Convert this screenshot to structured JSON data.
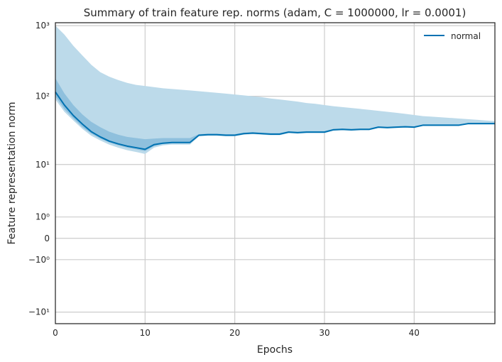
{
  "chart_data": {
    "type": "line",
    "title": "Summary of train feature rep. norms (adam, C = 1000000, lr = 0.0001)",
    "xlabel": "Epochs",
    "ylabel": "Feature representation norm",
    "xlim": [
      0,
      49
    ],
    "yscale": "symlog",
    "ylim": [
      -15,
      1100
    ],
    "grid": true,
    "legend_position": "top-right",
    "x_ticks": [
      0,
      10,
      20,
      30,
      40
    ],
    "y_ticks": [
      {
        "value": -10,
        "label": "−10¹"
      },
      {
        "value": -1,
        "label": "−10⁰"
      },
      {
        "value": 0,
        "label": "0"
      },
      {
        "value": 1,
        "label": "10⁰"
      },
      {
        "value": 10,
        "label": "10¹"
      },
      {
        "value": 100,
        "label": "10²"
      },
      {
        "value": 1000,
        "label": "10³"
      }
    ],
    "colors": {
      "line": "#0072b2",
      "band_outer": "#bcdaea",
      "band_inner": "#8fc0dd"
    },
    "series": [
      {
        "name": "normal",
        "x": [
          0,
          1,
          2,
          3,
          4,
          5,
          6,
          7,
          8,
          9,
          10,
          11,
          12,
          13,
          14,
          15,
          16,
          17,
          18,
          19,
          20,
          21,
          22,
          23,
          24,
          25,
          26,
          27,
          28,
          29,
          30,
          31,
          32,
          33,
          34,
          35,
          36,
          37,
          38,
          39,
          40,
          41,
          42,
          43,
          44,
          45,
          46,
          47,
          48,
          49
        ],
        "mean": [
          115,
          75,
          53,
          40,
          31,
          26,
          22.5,
          20.5,
          19,
          18,
          17,
          20,
          21,
          21.5,
          21.5,
          21.5,
          27.5,
          28,
          28,
          27.5,
          27.5,
          29,
          29.5,
          29,
          28.5,
          28.5,
          30.5,
          30,
          30.5,
          30.5,
          30.5,
          33,
          33.5,
          33,
          33.5,
          33.5,
          36,
          35.5,
          36,
          36.5,
          36,
          38.5,
          38.5,
          38.5,
          38.5,
          38.5,
          40.5,
          40.5,
          40.5,
          40.5
        ],
        "min": [
          90,
          60,
          45,
          34,
          27,
          23,
          20,
          18,
          16.5,
          15.5,
          14.5,
          18,
          19.5,
          20,
          20,
          20,
          26.5,
          27,
          27,
          26.5,
          26.5,
          28,
          28.5,
          28,
          27.5,
          27.5,
          29.5,
          29,
          29.5,
          29.5,
          29.5,
          32,
          32.5,
          32,
          32.5,
          32.5,
          35,
          34.5,
          35,
          35.5,
          35,
          37.5,
          37.5,
          37.5,
          37.5,
          37.5,
          39.5,
          39.5,
          39.5,
          39.5
        ],
        "max": [
          1000,
          750,
          520,
          380,
          280,
          220,
          190,
          170,
          155,
          145,
          140,
          135,
          130,
          127,
          124,
          121,
          118,
          115,
          112,
          109,
          106,
          103,
          100,
          97,
          93,
          90,
          87,
          84,
          80,
          78,
          75,
          72,
          70,
          68,
          66,
          64,
          62,
          60,
          58,
          56,
          54,
          52,
          51,
          50,
          49,
          48,
          47,
          46,
          45,
          44
        ],
        "q_low": [
          100,
          65,
          48,
          36,
          29,
          24.5,
          21.5,
          19.5,
          18,
          17,
          16,
          19,
          20.5,
          21,
          21,
          21,
          27,
          27.5,
          27.5,
          27,
          27,
          28.5,
          29,
          28.5,
          28,
          28,
          30,
          29.5,
          30,
          30,
          30,
          32.5,
          33,
          32.5,
          33,
          33,
          35.5,
          35,
          35.5,
          36,
          35.5,
          38,
          38,
          38,
          38,
          38,
          40,
          40,
          40,
          40
        ],
        "q_high": [
          180,
          110,
          75,
          55,
          43,
          36,
          31,
          28,
          26,
          25,
          24,
          24.5,
          25,
          25,
          25,
          25,
          28.5,
          29,
          29,
          28.5,
          28.5,
          30,
          30.5,
          30,
          29.5,
          29.5,
          31.5,
          31,
          31.5,
          31.5,
          31.5,
          34,
          34.5,
          34,
          34.5,
          34.5,
          37,
          36.5,
          37,
          37.5,
          37,
          39.5,
          39.5,
          39.5,
          39.5,
          39.5,
          41.5,
          41.5,
          41.5,
          41.5
        ]
      }
    ]
  }
}
